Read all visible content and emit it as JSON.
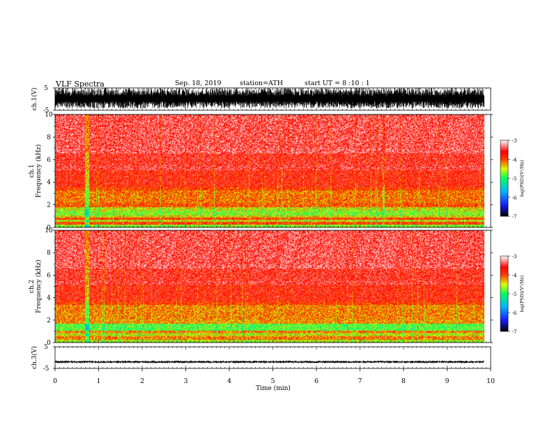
{
  "header": {
    "title": "VLF  Spectra",
    "date": "Sep. 18, 2019",
    "station": "station=ATH",
    "start": "start  UT  =   8  :10 : 1"
  },
  "colors": {
    "waveform": "#000000",
    "colorbar": [
      "#000000",
      "#1a1aff",
      "#00b7ff",
      "#00ff5a",
      "#d8ff00",
      "#ff3b00",
      "#ff0000",
      "#ffffff"
    ]
  },
  "chart_data": [
    {
      "type": "line",
      "panel": "ch1-waveform",
      "ylabel": "ch.1(V)",
      "yticks": [
        "5",
        "-5"
      ],
      "ylim": [
        -5,
        5
      ],
      "xlim": [
        0,
        10
      ],
      "data_end": 9.85,
      "amplitude_description": "dense broadband noise, roughly -4 to 5 V"
    },
    {
      "type": "heatmap",
      "panel": "ch1-spectrogram",
      "ylabel_line1": "ch.1",
      "ylabel_line2": "Frequency  (kHz)",
      "yticks": [
        0,
        2,
        4,
        6,
        8,
        10
      ],
      "ylim": [
        0,
        10
      ],
      "xlim": [
        0,
        10
      ],
      "data_end": 9.85,
      "colorbar": {
        "label": "log(PSD)(V²/Hz)",
        "ticks": [
          "-3",
          "-4",
          "-5",
          "-6",
          "-7"
        ],
        "range": [
          -7,
          -3
        ]
      },
      "bands_khz": [
        {
          "from": 0.0,
          "to": 0.3,
          "level": -4.6
        },
        {
          "from": 0.3,
          "to": 0.5,
          "level": -3.9
        },
        {
          "from": 0.5,
          "to": 0.7,
          "level": -4.4
        },
        {
          "from": 0.7,
          "to": 0.9,
          "level": -3.9
        },
        {
          "from": 0.9,
          "to": 1.1,
          "level": -4.3
        },
        {
          "from": 1.1,
          "to": 1.5,
          "level": -4.6
        },
        {
          "from": 1.5,
          "to": 1.8,
          "level": -4.4
        },
        {
          "from": 1.8,
          "to": 2.2,
          "level": -4.0
        },
        {
          "from": 2.2,
          "to": 3.3,
          "level": -4.1
        },
        {
          "from": 3.3,
          "to": 3.6,
          "level": -3.9
        },
        {
          "from": 3.6,
          "to": 5.1,
          "level": -3.7
        },
        {
          "from": 5.1,
          "to": 5.5,
          "level": -3.5
        },
        {
          "from": 5.5,
          "to": 6.6,
          "level": -3.6
        },
        {
          "from": 6.6,
          "to": 7.0,
          "level": -3.4
        },
        {
          "from": 7.0,
          "to": 10.0,
          "level": -3.45
        }
      ]
    },
    {
      "type": "heatmap",
      "panel": "ch2-spectrogram",
      "ylabel_line1": "ch.2",
      "ylabel_line2": "Frequency  (kHz)",
      "yticks": [
        0,
        2,
        4,
        6,
        8,
        10
      ],
      "ylim": [
        0,
        10
      ],
      "xlim": [
        0,
        10
      ],
      "data_end": 9.85,
      "colorbar": {
        "label": "log(PSD)(V²/Hz)",
        "ticks": [
          "-3",
          "-4",
          "-5",
          "-6",
          "-7"
        ],
        "range": [
          -7,
          -3
        ]
      },
      "bands_khz": [
        {
          "from": 0.0,
          "to": 0.3,
          "level": -4.5
        },
        {
          "from": 0.3,
          "to": 0.6,
          "level": -4.1
        },
        {
          "from": 0.6,
          "to": 0.9,
          "level": -4.4
        },
        {
          "from": 0.9,
          "to": 1.1,
          "level": -4.1
        },
        {
          "from": 1.1,
          "to": 1.7,
          "level": -4.75
        },
        {
          "from": 1.7,
          "to": 2.1,
          "level": -4.2
        },
        {
          "from": 2.1,
          "to": 3.4,
          "level": -4.15
        },
        {
          "from": 3.4,
          "to": 3.7,
          "level": -3.9
        },
        {
          "from": 3.7,
          "to": 5.2,
          "level": -3.7
        },
        {
          "from": 5.2,
          "to": 5.5,
          "level": -3.5
        },
        {
          "from": 5.5,
          "to": 6.6,
          "level": -3.6
        },
        {
          "from": 6.6,
          "to": 7.0,
          "level": -3.4
        },
        {
          "from": 7.0,
          "to": 10.0,
          "level": -3.45
        }
      ]
    },
    {
      "type": "line",
      "panel": "ch3-waveform",
      "ylabel": "ch.3(V)",
      "yticks": [
        "5",
        "-5"
      ],
      "ylim": [
        -5,
        5
      ],
      "xlim": [
        0,
        10
      ],
      "data_end": 9.85,
      "amplitude_description": "narrow trace near -2 V with small ripple",
      "baseline": -2.0,
      "ripple": 0.6
    },
    {
      "type": "axis",
      "panel": "time-axis",
      "xlabel": "Time  (min)",
      "xticks": [
        "0",
        "1",
        "2",
        "3",
        "4",
        "5",
        "6",
        "7",
        "8",
        "9",
        "10"
      ],
      "xlim": [
        0,
        10
      ]
    }
  ]
}
